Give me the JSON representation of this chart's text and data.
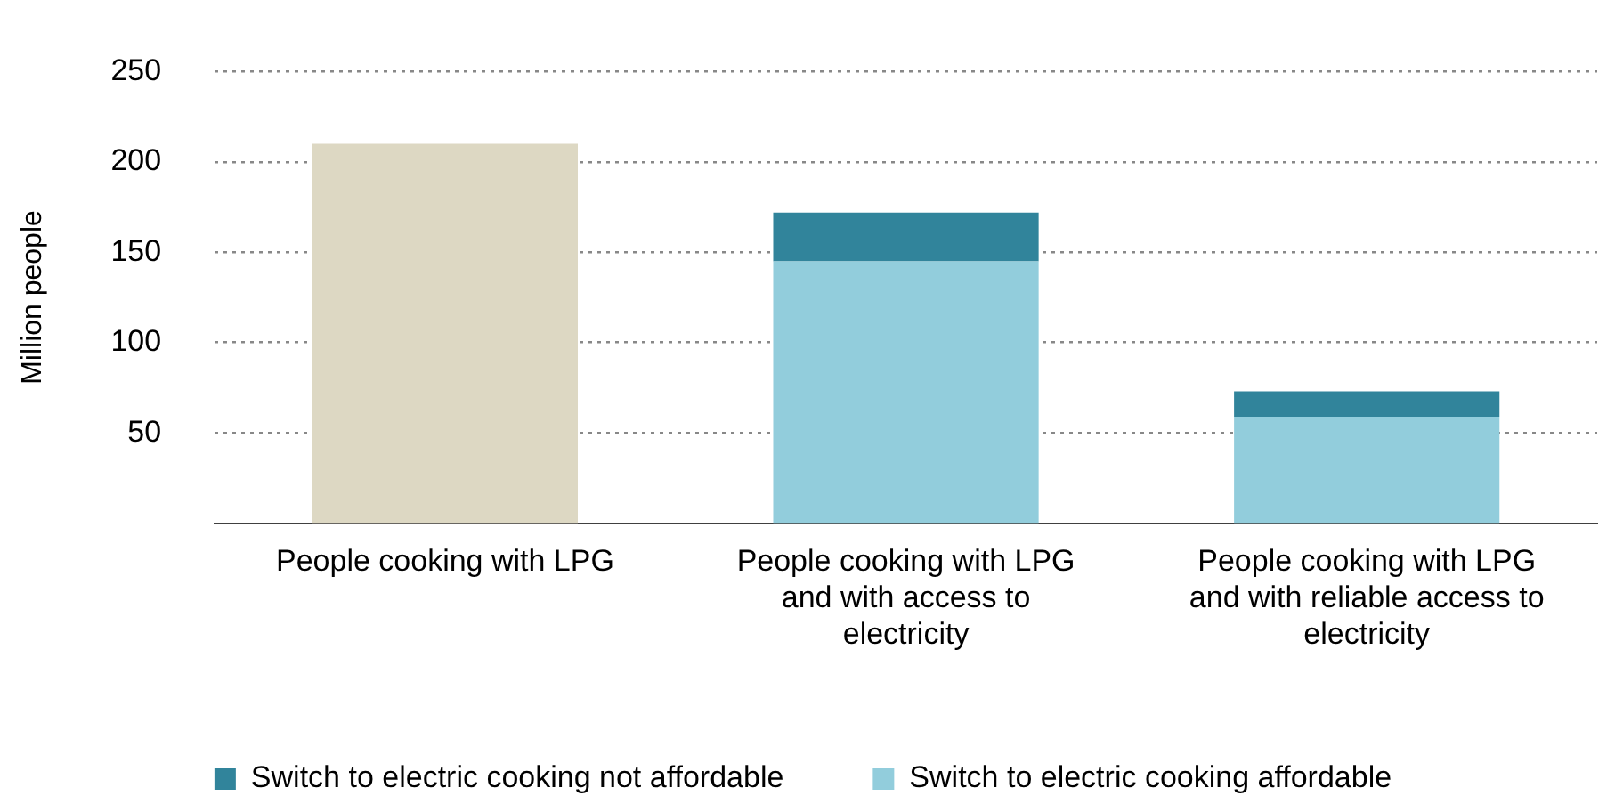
{
  "chart_data": {
    "type": "bar",
    "ylabel": "Million people",
    "stacked": true,
    "categories": [
      "People cooking with LPG",
      "People cooking with LPG and with access to electricity",
      "People cooking with LPG and with reliable access to electricity"
    ],
    "series": [
      {
        "color": "#ddd8c3",
        "values": [
          210,
          null,
          null
        ]
      },
      {
        "name": "Switch to electric cooking affordable",
        "color": "#92cddc",
        "values": [
          null,
          145,
          59
        ]
      },
      {
        "name": "Switch to electric cooking not affordable",
        "color": "#31849b",
        "values": [
          null,
          27,
          14
        ]
      }
    ],
    "ylim": [
      0,
      250
    ],
    "yticks": [
      50,
      100,
      150,
      200,
      250
    ],
    "grid": "y",
    "legend": "bottom"
  }
}
